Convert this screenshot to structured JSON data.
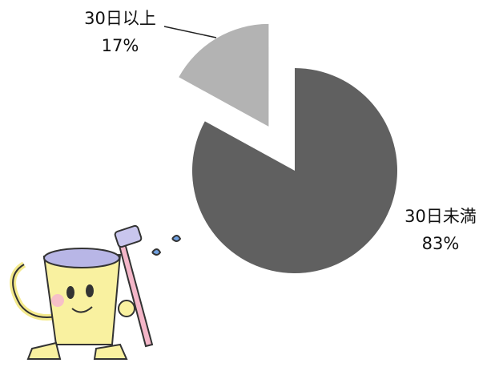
{
  "chart_data": {
    "type": "pie",
    "categories": [
      "30日未満",
      "30日以上"
    ],
    "values": [
      83,
      17
    ],
    "value_labels": [
      "83%",
      "17%"
    ],
    "colors": [
      "#606060",
      "#b3b3b3"
    ]
  }
}
